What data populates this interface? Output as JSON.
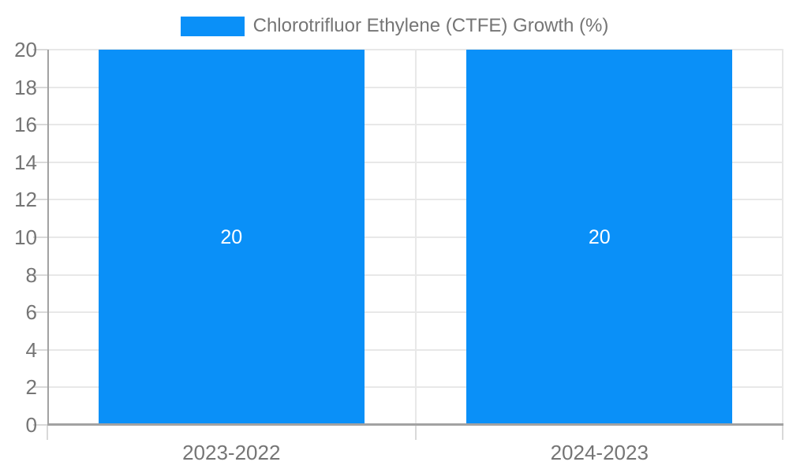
{
  "chart_data": {
    "type": "bar",
    "title": "",
    "legend": {
      "position": "top",
      "label": "Chlorotrifluor Ethylene (CTFE) Growth (%)"
    },
    "categories": [
      "2023-2022",
      "2024-2023"
    ],
    "series": [
      {
        "name": "Chlorotrifluor Ethylene (CTFE) Growth (%)",
        "values": [
          20,
          20
        ]
      }
    ],
    "bar_value_labels": [
      "20",
      "20"
    ],
    "y_ticks": [
      0,
      2,
      4,
      6,
      8,
      10,
      12,
      14,
      16,
      18,
      20
    ],
    "ylim": [
      0,
      20
    ],
    "grid": true,
    "colors": {
      "bar": "#0a90f8",
      "bar_label": "#ffffff",
      "axis": "#a2a2a2",
      "grid": "#e8e8e8",
      "tick": "#d9d9d9",
      "text": "#757575",
      "background": "#ffffff"
    }
  }
}
